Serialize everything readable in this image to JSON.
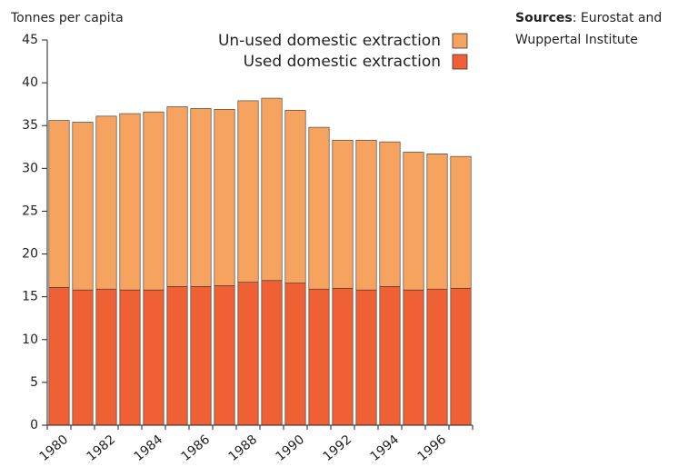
{
  "chart_data": {
    "type": "stacked-bar",
    "y_label": "Tonnes per capita",
    "sources": {
      "label": "Sources",
      "text": ": Eurostat and",
      "line2": "Wuppertal Institute"
    },
    "categories": [
      "1980",
      null,
      "1982",
      null,
      "1984",
      null,
      "1986",
      null,
      "1988",
      null,
      "1990",
      null,
      "1992",
      null,
      "1994",
      null,
      "1996",
      null
    ],
    "series": [
      {
        "name": "Used domestic extraction",
        "color": "#ef6035",
        "values": [
          16.1,
          15.8,
          15.9,
          15.8,
          15.8,
          16.2,
          16.2,
          16.3,
          16.7,
          16.9,
          16.6,
          15.9,
          16.0,
          15.8,
          16.2,
          15.8,
          15.9,
          16.0
        ]
      },
      {
        "name": "Un-used domestic extraction",
        "color": "#f7a360",
        "values": [
          19.5,
          19.6,
          20.2,
          20.6,
          20.8,
          21.0,
          20.8,
          20.6,
          21.2,
          21.3,
          20.2,
          18.9,
          17.3,
          17.5,
          16.9,
          16.1,
          15.8,
          15.4
        ]
      }
    ],
    "ylim": [
      0,
      45
    ],
    "yticks": [
      0,
      5,
      10,
      15,
      20,
      25,
      30,
      35,
      40,
      45
    ],
    "grid": false
  }
}
